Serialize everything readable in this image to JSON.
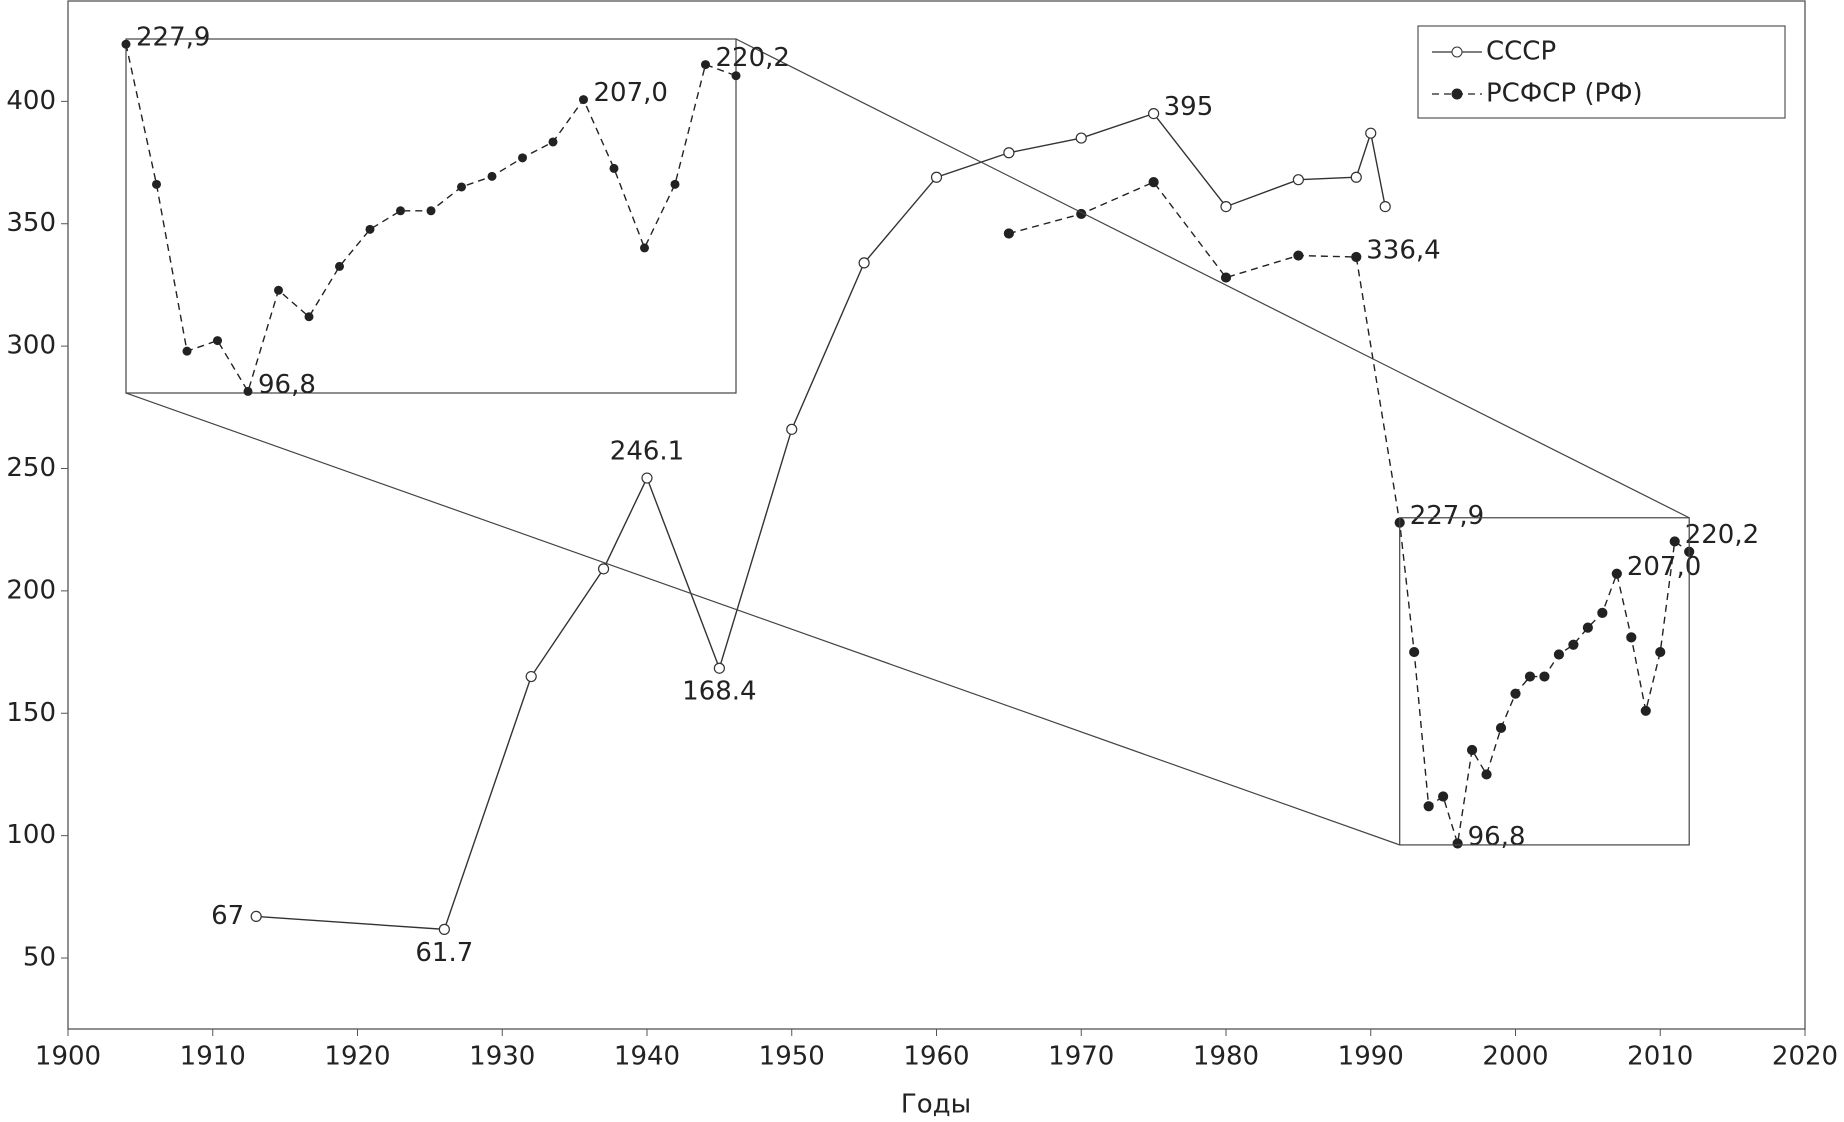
{
  "chart_data": {
    "type": "line",
    "x_label": "Годы",
    "xlim": [
      1900,
      2020
    ],
    "xticks": [
      1900,
      1910,
      1920,
      1930,
      1940,
      1950,
      1960,
      1970,
      1980,
      1990,
      2000,
      2010,
      2020
    ],
    "ylim": [
      21,
      441
    ],
    "yticks": [
      50,
      100,
      150,
      200,
      250,
      300,
      350,
      400
    ],
    "grid": false,
    "legend": "upper right",
    "inset_zoom": true,
    "series": [
      {
        "name": "СССР",
        "color": "#333333",
        "line_style": "solid",
        "marker": "open",
        "x": [
          1913,
          1926,
          1932,
          1937,
          1940,
          1945,
          1950,
          1955,
          1960,
          1965,
          1970,
          1975,
          1980,
          1985,
          1989,
          1990,
          1991
        ],
        "values": [
          67,
          61.7,
          165,
          209,
          246.1,
          168.4,
          266,
          334,
          369,
          379,
          385,
          395,
          357,
          368,
          369,
          387,
          357
        ],
        "value_labels": [
          "67",
          "61.7",
          null,
          null,
          "246.1",
          "168.4",
          null,
          null,
          null,
          null,
          null,
          "395",
          null,
          null,
          null,
          null,
          null
        ]
      },
      {
        "name": "РСФСР (РФ)",
        "color": "#222222",
        "line_style": "dashed",
        "marker": "filled",
        "x": [
          1965,
          1970,
          1975,
          1980,
          1985,
          1989,
          1992,
          1993,
          1994,
          1995,
          1996,
          1997,
          1998,
          1999,
          2000,
          2001,
          2002,
          2003,
          2004,
          2005,
          2006,
          2007,
          2008,
          2009,
          2010,
          2011,
          2012
        ],
        "values": [
          346,
          354,
          367,
          328,
          337,
          336.4,
          227.9,
          175,
          112,
          116,
          96.8,
          135,
          125,
          144,
          158,
          165,
          165,
          174,
          178,
          185,
          191,
          207.0,
          181,
          151,
          175,
          220.2,
          216
        ],
        "value_labels": [
          null,
          null,
          null,
          null,
          null,
          "336,4",
          "227,9",
          null,
          null,
          null,
          "96,8",
          null,
          null,
          null,
          null,
          null,
          null,
          null,
          null,
          null,
          null,
          "207,0",
          null,
          null,
          null,
          "220,2",
          null
        ]
      }
    ]
  }
}
